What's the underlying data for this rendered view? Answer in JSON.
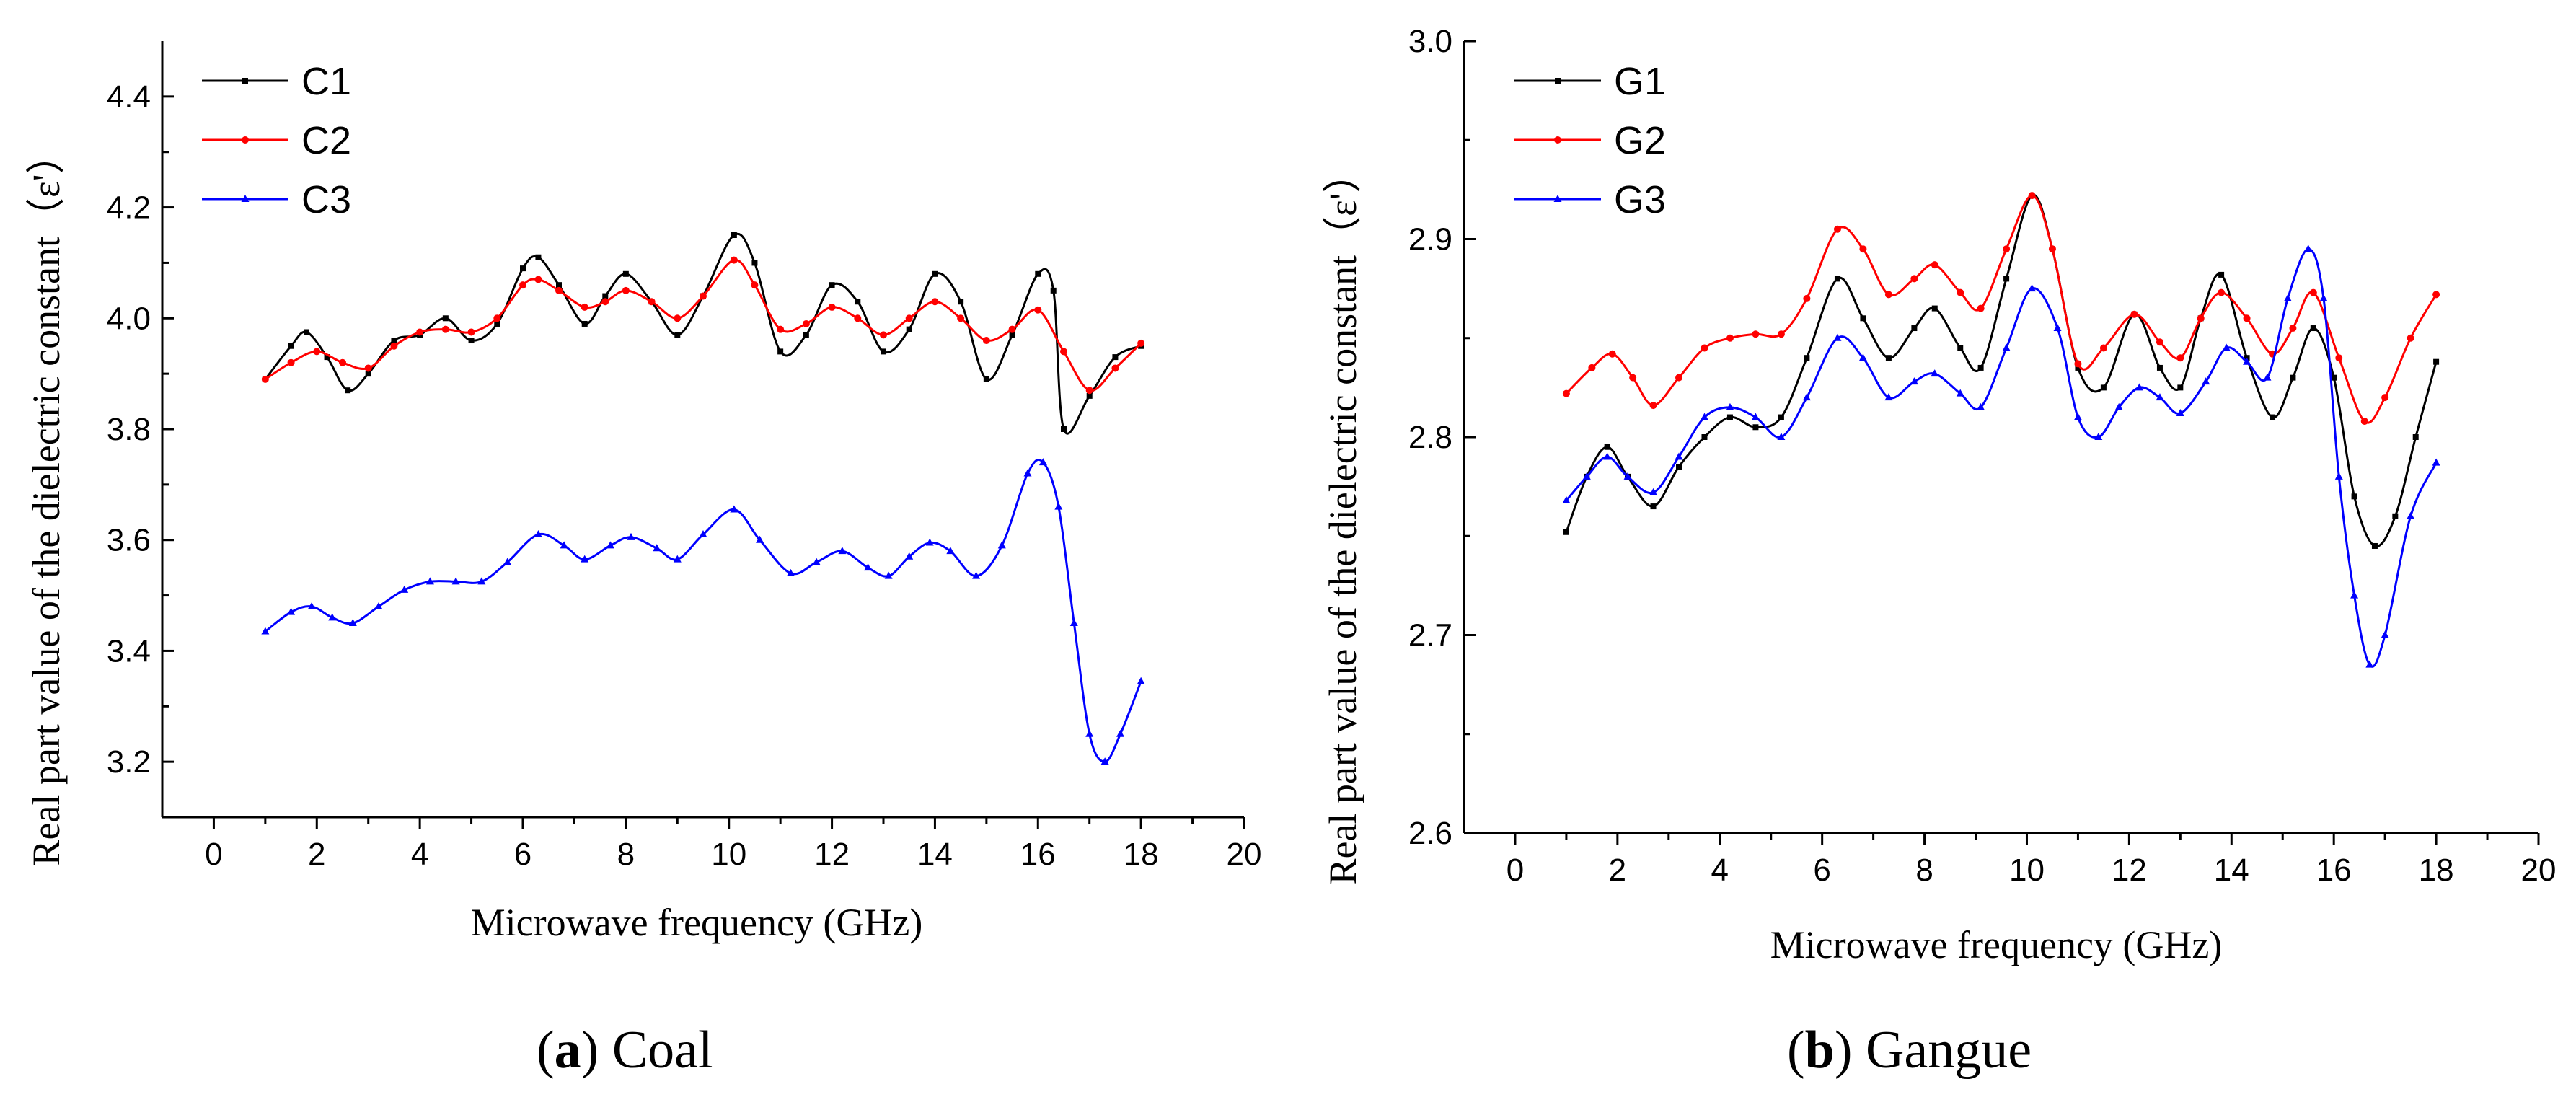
{
  "chart_data": [
    {
      "type": "line",
      "caption_letter": "a",
      "caption_name": "Coal",
      "xlabel": "Microwave frequency (GHz)",
      "ylabel": "Real part value of the dielectric constant（ε'）",
      "xlim": [
        -1,
        20
      ],
      "ylim": [
        3.1,
        4.5
      ],
      "xticks": [
        0,
        2,
        4,
        6,
        8,
        10,
        12,
        14,
        16,
        18,
        20
      ],
      "yticks": [
        3.2,
        3.4,
        3.6,
        3.8,
        4.0,
        4.2,
        4.4
      ],
      "legend_position": "top-left",
      "series": [
        {
          "name": "C1",
          "color": "#000000",
          "marker": "square",
          "x": [
            1,
            1.5,
            1.8,
            2.2,
            2.6,
            3.0,
            3.5,
            4.0,
            4.5,
            5.0,
            5.5,
            6.0,
            6.3,
            6.7,
            7.2,
            7.6,
            8.0,
            8.5,
            9.0,
            9.5,
            10.1,
            10.5,
            11.0,
            11.5,
            12.0,
            12.5,
            13.0,
            13.5,
            14.0,
            14.5,
            15.0,
            15.5,
            16.0,
            16.3,
            16.5,
            17.0,
            17.5,
            18.0
          ],
          "y": [
            3.89,
            3.95,
            3.975,
            3.93,
            3.87,
            3.9,
            3.96,
            3.97,
            4.0,
            3.96,
            3.99,
            4.09,
            4.11,
            4.06,
            3.99,
            4.04,
            4.08,
            4.03,
            3.97,
            4.04,
            4.15,
            4.1,
            3.94,
            3.97,
            4.06,
            4.03,
            3.94,
            3.98,
            4.08,
            4.03,
            3.89,
            3.97,
            4.08,
            4.05,
            3.8,
            3.86,
            3.93,
            3.95
          ]
        },
        {
          "name": "C2",
          "color": "#ff0000",
          "marker": "circle",
          "x": [
            1,
            1.5,
            2.0,
            2.5,
            3.0,
            3.5,
            4.0,
            4.5,
            5.0,
            5.5,
            6.0,
            6.3,
            6.7,
            7.2,
            7.6,
            8.0,
            8.5,
            9.0,
            9.5,
            10.1,
            10.5,
            11.0,
            11.5,
            12.0,
            12.5,
            13.0,
            13.5,
            14.0,
            14.5,
            15.0,
            15.5,
            16.0,
            16.5,
            17.0,
            17.5,
            18.0
          ],
          "y": [
            3.89,
            3.92,
            3.94,
            3.92,
            3.91,
            3.95,
            3.975,
            3.98,
            3.975,
            4.0,
            4.06,
            4.07,
            4.05,
            4.02,
            4.03,
            4.05,
            4.03,
            4.0,
            4.04,
            4.105,
            4.06,
            3.98,
            3.99,
            4.02,
            4.0,
            3.97,
            4.0,
            4.03,
            4.0,
            3.96,
            3.98,
            4.015,
            3.94,
            3.87,
            3.91,
            3.955
          ]
        },
        {
          "name": "C3",
          "color": "#0000ff",
          "marker": "triangle",
          "x": [
            1,
            1.5,
            1.9,
            2.3,
            2.7,
            3.2,
            3.7,
            4.2,
            4.7,
            5.2,
            5.7,
            6.3,
            6.8,
            7.2,
            7.7,
            8.1,
            8.6,
            9.0,
            9.5,
            10.1,
            10.6,
            11.2,
            11.7,
            12.2,
            12.7,
            13.1,
            13.5,
            13.9,
            14.3,
            14.8,
            15.3,
            15.8,
            16.1,
            16.4,
            16.7,
            17.0,
            17.3,
            17.6,
            18.0
          ],
          "y": [
            3.435,
            3.47,
            3.48,
            3.46,
            3.45,
            3.48,
            3.51,
            3.525,
            3.525,
            3.525,
            3.56,
            3.61,
            3.59,
            3.565,
            3.59,
            3.605,
            3.585,
            3.565,
            3.61,
            3.655,
            3.6,
            3.54,
            3.56,
            3.58,
            3.55,
            3.535,
            3.57,
            3.595,
            3.58,
            3.535,
            3.59,
            3.72,
            3.74,
            3.66,
            3.45,
            3.25,
            3.2,
            3.25,
            3.345
          ]
        }
      ]
    },
    {
      "type": "line",
      "caption_letter": "b",
      "caption_name": "Gangue",
      "xlabel": "Microwave frequency (GHz)",
      "ylabel": "Real part value of the dielectric constant（ε'）",
      "xlim": [
        -1,
        20
      ],
      "ylim": [
        2.6,
        3.0
      ],
      "xticks": [
        0,
        2,
        4,
        6,
        8,
        10,
        12,
        14,
        16,
        18,
        20
      ],
      "yticks": [
        2.6,
        2.7,
        2.8,
        2.9,
        3.0
      ],
      "legend_position": "top-left",
      "series": [
        {
          "name": "G1",
          "color": "#000000",
          "marker": "square",
          "x": [
            1,
            1.4,
            1.8,
            2.2,
            2.7,
            3.2,
            3.7,
            4.2,
            4.7,
            5.2,
            5.7,
            6.3,
            6.8,
            7.3,
            7.8,
            8.2,
            8.7,
            9.1,
            9.6,
            10.1,
            10.5,
            11.0,
            11.5,
            12.1,
            12.6,
            13.0,
            13.4,
            13.8,
            14.3,
            14.8,
            15.2,
            15.6,
            16.0,
            16.4,
            16.8,
            17.2,
            17.6,
            18.0
          ],
          "y": [
            2.752,
            2.78,
            2.795,
            2.78,
            2.765,
            2.785,
            2.8,
            2.81,
            2.805,
            2.81,
            2.84,
            2.88,
            2.86,
            2.84,
            2.855,
            2.865,
            2.845,
            2.835,
            2.88,
            2.922,
            2.895,
            2.835,
            2.825,
            2.862,
            2.835,
            2.825,
            2.86,
            2.882,
            2.84,
            2.81,
            2.83,
            2.855,
            2.83,
            2.77,
            2.745,
            2.76,
            2.8,
            2.838
          ]
        },
        {
          "name": "G2",
          "color": "#ff0000",
          "marker": "circle",
          "x": [
            1,
            1.5,
            1.9,
            2.3,
            2.7,
            3.2,
            3.7,
            4.2,
            4.7,
            5.2,
            5.7,
            6.3,
            6.8,
            7.3,
            7.8,
            8.2,
            8.7,
            9.1,
            9.6,
            10.1,
            10.5,
            11.0,
            11.5,
            12.1,
            12.6,
            13.0,
            13.4,
            13.8,
            14.3,
            14.8,
            15.2,
            15.6,
            16.1,
            16.6,
            17.0,
            17.5,
            18.0
          ],
          "y": [
            2.822,
            2.835,
            2.842,
            2.83,
            2.816,
            2.83,
            2.845,
            2.85,
            2.852,
            2.852,
            2.87,
            2.905,
            2.895,
            2.872,
            2.88,
            2.887,
            2.873,
            2.865,
            2.895,
            2.922,
            2.895,
            2.837,
            2.845,
            2.862,
            2.848,
            2.84,
            2.86,
            2.873,
            2.86,
            2.842,
            2.855,
            2.873,
            2.84,
            2.808,
            2.82,
            2.85,
            2.872
          ]
        },
        {
          "name": "G3",
          "color": "#0000ff",
          "marker": "triangle",
          "x": [
            1,
            1.4,
            1.8,
            2.2,
            2.7,
            3.2,
            3.7,
            4.2,
            4.7,
            5.2,
            5.7,
            6.3,
            6.8,
            7.3,
            7.8,
            8.2,
            8.7,
            9.1,
            9.6,
            10.1,
            10.6,
            11.0,
            11.4,
            11.8,
            12.2,
            12.6,
            13.0,
            13.5,
            13.9,
            14.3,
            14.7,
            15.1,
            15.5,
            15.8,
            16.1,
            16.4,
            16.7,
            17.0,
            17.5,
            18.0
          ],
          "y": [
            2.768,
            2.78,
            2.79,
            2.78,
            2.772,
            2.79,
            2.81,
            2.815,
            2.81,
            2.8,
            2.82,
            2.85,
            2.84,
            2.82,
            2.828,
            2.832,
            2.822,
            2.815,
            2.845,
            2.875,
            2.855,
            2.81,
            2.8,
            2.815,
            2.825,
            2.82,
            2.812,
            2.828,
            2.845,
            2.838,
            2.83,
            2.87,
            2.895,
            2.87,
            2.78,
            2.72,
            2.685,
            2.7,
            2.76,
            2.787
          ]
        }
      ]
    }
  ]
}
